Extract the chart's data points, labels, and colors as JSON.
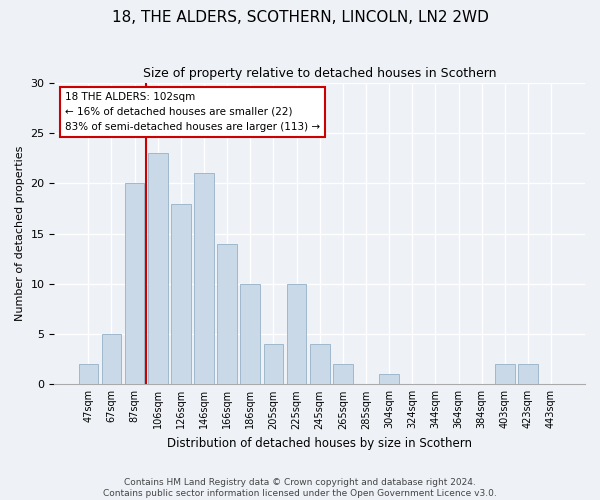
{
  "title": "18, THE ALDERS, SCOTHERN, LINCOLN, LN2 2WD",
  "subtitle": "Size of property relative to detached houses in Scothern",
  "xlabel": "Distribution of detached houses by size in Scothern",
  "ylabel": "Number of detached properties",
  "bins": [
    "47sqm",
    "67sqm",
    "87sqm",
    "106sqm",
    "126sqm",
    "146sqm",
    "166sqm",
    "186sqm",
    "205sqm",
    "225sqm",
    "245sqm",
    "265sqm",
    "285sqm",
    "304sqm",
    "324sqm",
    "344sqm",
    "364sqm",
    "384sqm",
    "403sqm",
    "423sqm",
    "443sqm"
  ],
  "counts": [
    2,
    5,
    20,
    23,
    18,
    21,
    14,
    10,
    4,
    10,
    4,
    2,
    0,
    1,
    0,
    0,
    0,
    0,
    2,
    2,
    0
  ],
  "bar_color": "#c9d9e8",
  "bar_edge_color": "#a0b8cc",
  "vline_x_index": 3,
  "vline_color": "#cc0000",
  "annotation_text": "18 THE ALDERS: 102sqm\n← 16% of detached houses are smaller (22)\n83% of semi-detached houses are larger (113) →",
  "annotation_box_color": "#ffffff",
  "annotation_box_edge": "#cc0000",
  "ylim": [
    0,
    30
  ],
  "yticks": [
    0,
    5,
    10,
    15,
    20,
    25,
    30
  ],
  "footer_text": "Contains HM Land Registry data © Crown copyright and database right 2024.\nContains public sector information licensed under the Open Government Licence v3.0.",
  "bg_color": "#eef2f7",
  "plot_bg_color": "#eef2f7"
}
